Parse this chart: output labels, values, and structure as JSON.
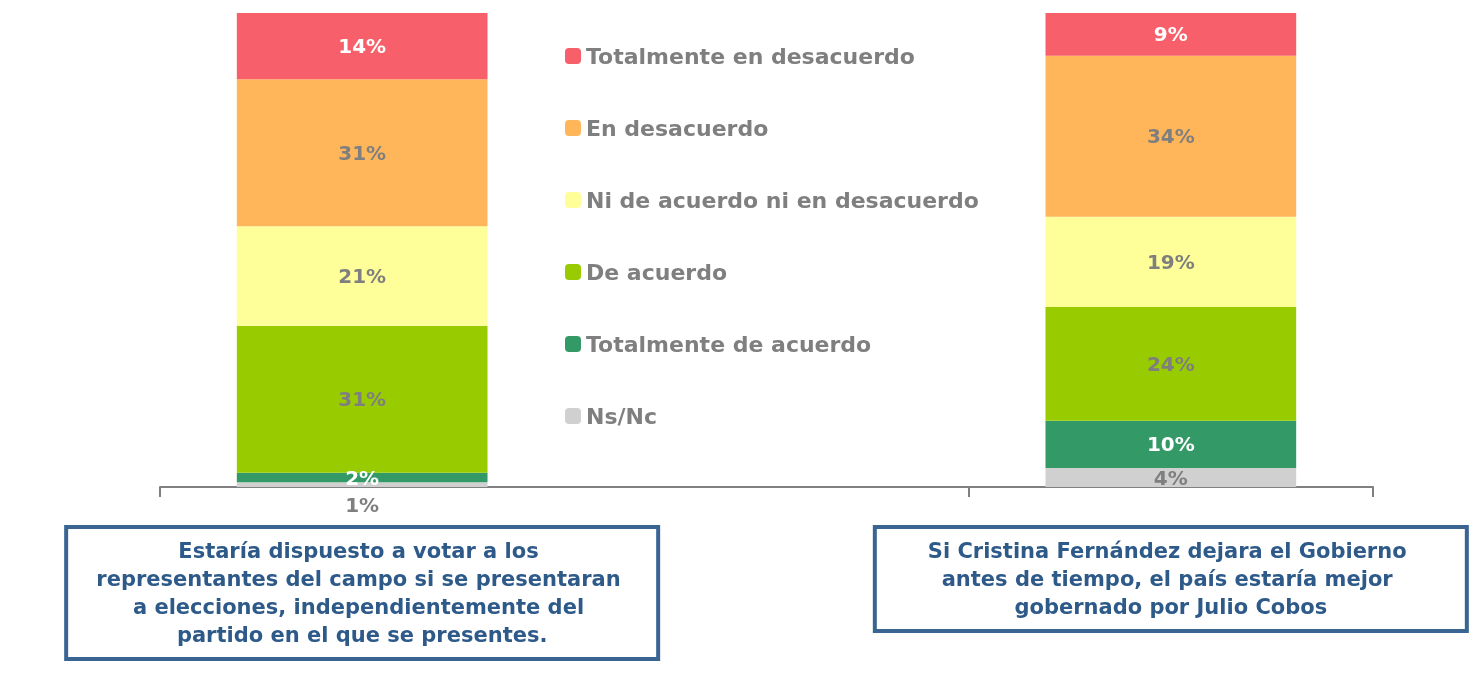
{
  "chart_data": {
    "type": "bar",
    "stacked": true,
    "legend": "top",
    "categories": [
      "Estaría dispuesto a votar a los representantes del campo si se presentaran a elecciones, independientemente del partido en el que se presentes.",
      null,
      "Si Cristina Fernández dejara el Gobierno antes de tiempo, el país estaría mejor gobernado por Julio Cobos"
    ],
    "series": [
      {
        "name": "Ns/Nc",
        "color": "#d0d0d0",
        "values": [
          1,
          null,
          4
        ],
        "value_labels": [
          "1%",
          null,
          "4%"
        ]
      },
      {
        "name": "Totalmente de acuerdo",
        "color": "#339966",
        "values": [
          2,
          null,
          10
        ],
        "value_labels": [
          "2%",
          null,
          "10%"
        ]
      },
      {
        "name": "De acuerdo",
        "color": "#99cc00",
        "values": [
          31,
          null,
          24
        ],
        "value_labels": [
          "31%",
          null,
          "24%"
        ]
      },
      {
        "name": "Ni de acuerdo ni en desacuerdo",
        "color": "#ffff99",
        "values": [
          21,
          null,
          19
        ],
        "value_labels": [
          "21%",
          null,
          "19%"
        ]
      },
      {
        "name": "En desacuerdo",
        "color": "#ffb65a",
        "values": [
          31,
          null,
          34
        ],
        "value_labels": [
          "31%",
          null,
          "34%"
        ]
      },
      {
        "name": "Totalmente en desacuerdo",
        "color": "#f7606a",
        "values": [
          14,
          null,
          9
        ],
        "value_labels": [
          "14%",
          null,
          "9%"
        ]
      }
    ]
  }
}
